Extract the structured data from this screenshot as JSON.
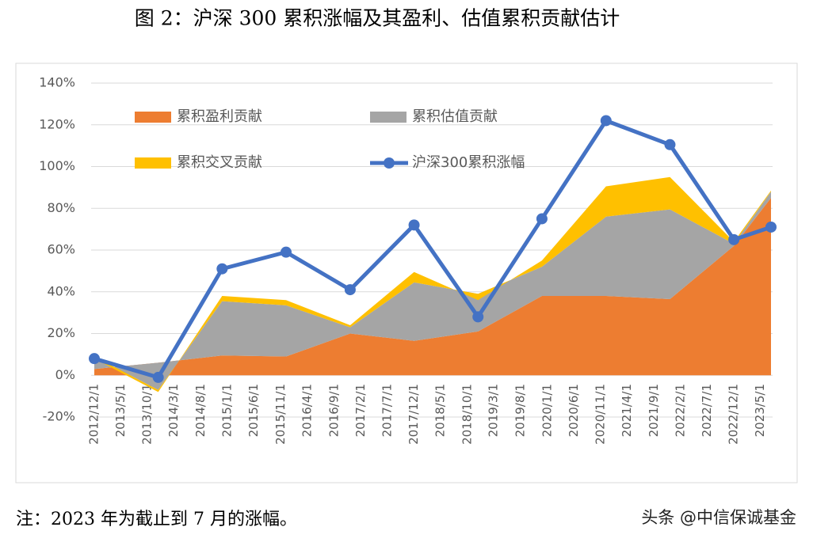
{
  "chart_data": {
    "type": "area",
    "title": "图 2：沪深 300 累积涨幅及其盈利、估值累积贡献估计",
    "x": [
      "2012/12/1",
      "2013/12/1",
      "2014/12/1",
      "2015/12/1",
      "2016/12/1",
      "2017/12/1",
      "2018/12/1",
      "2019/12/1",
      "2020/12/1",
      "2021/12/1",
      "2022/12/1",
      "2023/7/1"
    ],
    "xlim": [
      "2012/12/1",
      "2023/7/1"
    ],
    "xticks": [
      "2012/12/1",
      "2013/5/1",
      "2013/10/1",
      "2014/3/1",
      "2014/8/1",
      "2015/1/1",
      "2015/6/1",
      "2015/11/1",
      "2016/4/1",
      "2016/9/1",
      "2017/2/1",
      "2017/7/1",
      "2017/12/1",
      "2018/5/1",
      "2018/10/1",
      "2019/3/1",
      "2019/8/1",
      "2020/1/1",
      "2020/6/1",
      "2020/11/1",
      "2021/4/1",
      "2021/9/1",
      "2022/2/1",
      "2022/7/1",
      "2022/12/1",
      "2023/5/1"
    ],
    "ylim": [
      -20,
      140
    ],
    "yticks": [
      {
        "value": -20,
        "label": "-20%"
      },
      {
        "value": 0,
        "label": "0%"
      },
      {
        "value": 20,
        "label": "20%"
      },
      {
        "value": 40,
        "label": "40%"
      },
      {
        "value": 60,
        "label": "60%"
      },
      {
        "value": 80,
        "label": "80%"
      },
      {
        "value": 100,
        "label": "100%"
      },
      {
        "value": 120,
        "label": "120%"
      },
      {
        "value": 140,
        "label": "140%"
      }
    ],
    "grid": true,
    "series": [
      {
        "name": "累积盈利贡献",
        "type": "area",
        "color": "#ED7D31",
        "values": [
          3,
          6,
          9.5,
          9,
          20,
          16.5,
          21,
          38,
          38,
          36.5,
          62,
          85
        ]
      },
      {
        "name": "累积估值贡献",
        "type": "area",
        "color": "#A5A5A5",
        "values": [
          6,
          -13,
          26,
          24.5,
          3,
          28,
          18,
          14,
          38,
          43,
          1,
          3
        ]
      },
      {
        "name": "累积交叉贡献",
        "type": "area",
        "color": "#FFC000",
        "values": [
          -1,
          -1,
          2.5,
          2.5,
          1,
          5,
          -3,
          3,
          14.5,
          15.5,
          1,
          0.5
        ]
      },
      {
        "name": "沪深300累积涨幅",
        "type": "line",
        "color": "#4472C4",
        "values": [
          8,
          -1,
          51,
          59,
          41,
          72,
          28,
          75,
          122,
          110.5,
          65,
          71
        ]
      }
    ]
  },
  "footer": {
    "note": "注：2023 年为截止到 7 月的涨幅。",
    "source": "头条 @中信保诚基金"
  }
}
